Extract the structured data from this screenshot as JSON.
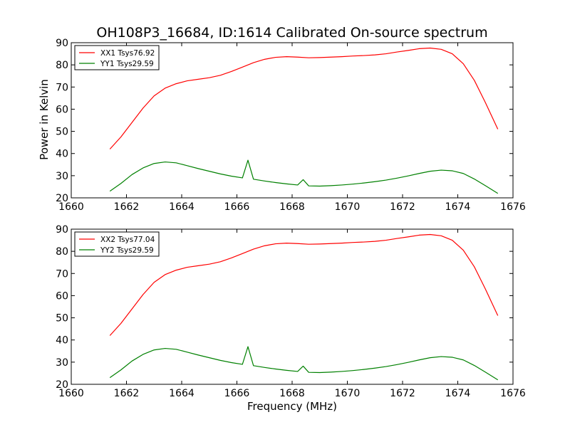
{
  "figure": {
    "title": "OH108P3_16684, ID:1614 Calibrated On-source spectrum"
  },
  "chart_data": [
    {
      "type": "line",
      "title": "OH108P3_16684, ID:1614 Calibrated On-source spectrum",
      "xlabel": "",
      "ylabel": "Power in Kelvin",
      "xlim": [
        1660,
        1676
      ],
      "ylim": [
        20,
        90
      ],
      "xticks": [
        "1660",
        "1662",
        "1664",
        "1666",
        "1668",
        "1670",
        "1672",
        "1674",
        "1676"
      ],
      "yticks": [
        "20",
        "30",
        "40",
        "50",
        "60",
        "70",
        "80",
        "90"
      ],
      "grid": false,
      "legend": "top-left",
      "series": [
        {
          "name": "XX1 Tsys76.92",
          "color": "#ff0000",
          "x": [
            1661.4,
            1661.8,
            1662.2,
            1662.6,
            1663.0,
            1663.4,
            1663.8,
            1664.2,
            1664.6,
            1665.0,
            1665.4,
            1665.8,
            1666.2,
            1666.6,
            1667.0,
            1667.4,
            1667.8,
            1668.2,
            1668.6,
            1669.0,
            1669.4,
            1669.8,
            1670.2,
            1670.6,
            1671.0,
            1671.4,
            1671.8,
            1672.2,
            1672.6,
            1673.0,
            1673.4,
            1673.8,
            1674.2,
            1674.6,
            1675.0,
            1675.45
          ],
          "y": [
            42,
            47.5,
            54,
            60.5,
            66,
            69.5,
            71.5,
            72.8,
            73.5,
            74.2,
            75.3,
            77,
            79,
            81,
            82.5,
            83.4,
            83.7,
            83.5,
            83.2,
            83.3,
            83.5,
            83.7,
            84,
            84.2,
            84.5,
            85,
            85.8,
            86.5,
            87.3,
            87.6,
            87,
            85,
            80.5,
            73,
            63,
            51
          ]
        },
        {
          "name": "YY1 Tsys29.59",
          "color": "#008000",
          "x": [
            1661.4,
            1661.8,
            1662.2,
            1662.6,
            1663.0,
            1663.4,
            1663.8,
            1664.2,
            1664.6,
            1665.0,
            1665.4,
            1665.8,
            1666.2,
            1666.4,
            1666.6,
            1667.0,
            1667.4,
            1667.8,
            1668.2,
            1668.4,
            1668.6,
            1669.0,
            1669.4,
            1669.8,
            1670.2,
            1670.6,
            1671.0,
            1671.4,
            1671.8,
            1672.2,
            1672.6,
            1673.0,
            1673.4,
            1673.8,
            1674.2,
            1674.6,
            1675.0,
            1675.45
          ],
          "y": [
            23,
            26.5,
            30.5,
            33.5,
            35.5,
            36.2,
            35.8,
            34.5,
            33.2,
            32,
            30.8,
            29.8,
            29,
            37,
            28.4,
            27.6,
            26.9,
            26.3,
            25.8,
            28.2,
            25.4,
            25.3,
            25.5,
            25.8,
            26.2,
            26.7,
            27.3,
            28,
            28.9,
            29.9,
            31,
            32,
            32.5,
            32.2,
            31,
            28.5,
            25.5,
            22
          ]
        }
      ]
    },
    {
      "type": "line",
      "title": "",
      "xlabel": "Frequency (MHz)",
      "ylabel": "",
      "xlim": [
        1660,
        1676
      ],
      "ylim": [
        20,
        90
      ],
      "xticks": [
        "1660",
        "1662",
        "1664",
        "1666",
        "1668",
        "1670",
        "1672",
        "1674",
        "1676"
      ],
      "yticks": [
        "20",
        "30",
        "40",
        "50",
        "60",
        "70",
        "80",
        "90"
      ],
      "grid": false,
      "legend": "top-left",
      "series": [
        {
          "name": "XX2 Tsys77.04",
          "color": "#ff0000",
          "x": [
            1661.4,
            1661.8,
            1662.2,
            1662.6,
            1663.0,
            1663.4,
            1663.8,
            1664.2,
            1664.6,
            1665.0,
            1665.4,
            1665.8,
            1666.2,
            1666.6,
            1667.0,
            1667.4,
            1667.8,
            1668.2,
            1668.6,
            1669.0,
            1669.4,
            1669.8,
            1670.2,
            1670.6,
            1671.0,
            1671.4,
            1671.8,
            1672.2,
            1672.6,
            1673.0,
            1673.4,
            1673.8,
            1674.2,
            1674.6,
            1675.0,
            1675.45
          ],
          "y": [
            42,
            47.5,
            54,
            60.5,
            66,
            69.5,
            71.5,
            72.8,
            73.5,
            74.2,
            75.3,
            77,
            79,
            81,
            82.5,
            83.4,
            83.7,
            83.5,
            83.2,
            83.3,
            83.5,
            83.7,
            84,
            84.2,
            84.5,
            85,
            85.8,
            86.5,
            87.3,
            87.6,
            87,
            85,
            80.5,
            73,
            63,
            51
          ]
        },
        {
          "name": "YY2 Tsys29.59",
          "color": "#008000",
          "x": [
            1661.4,
            1661.8,
            1662.2,
            1662.6,
            1663.0,
            1663.4,
            1663.8,
            1664.2,
            1664.6,
            1665.0,
            1665.4,
            1665.8,
            1666.2,
            1666.4,
            1666.6,
            1667.0,
            1667.4,
            1667.8,
            1668.2,
            1668.4,
            1668.6,
            1669.0,
            1669.4,
            1669.8,
            1670.2,
            1670.6,
            1671.0,
            1671.4,
            1671.8,
            1672.2,
            1672.6,
            1673.0,
            1673.4,
            1673.8,
            1674.2,
            1674.6,
            1675.0,
            1675.45
          ],
          "y": [
            23,
            26.5,
            30.5,
            33.5,
            35.5,
            36.2,
            35.8,
            34.5,
            33.2,
            32,
            30.8,
            29.8,
            29,
            37,
            28.4,
            27.6,
            26.9,
            26.3,
            25.8,
            28.2,
            25.4,
            25.3,
            25.5,
            25.8,
            26.2,
            26.7,
            27.3,
            28,
            28.9,
            29.9,
            31,
            32,
            32.5,
            32.2,
            31,
            28.5,
            25.5,
            22
          ]
        }
      ]
    }
  ]
}
